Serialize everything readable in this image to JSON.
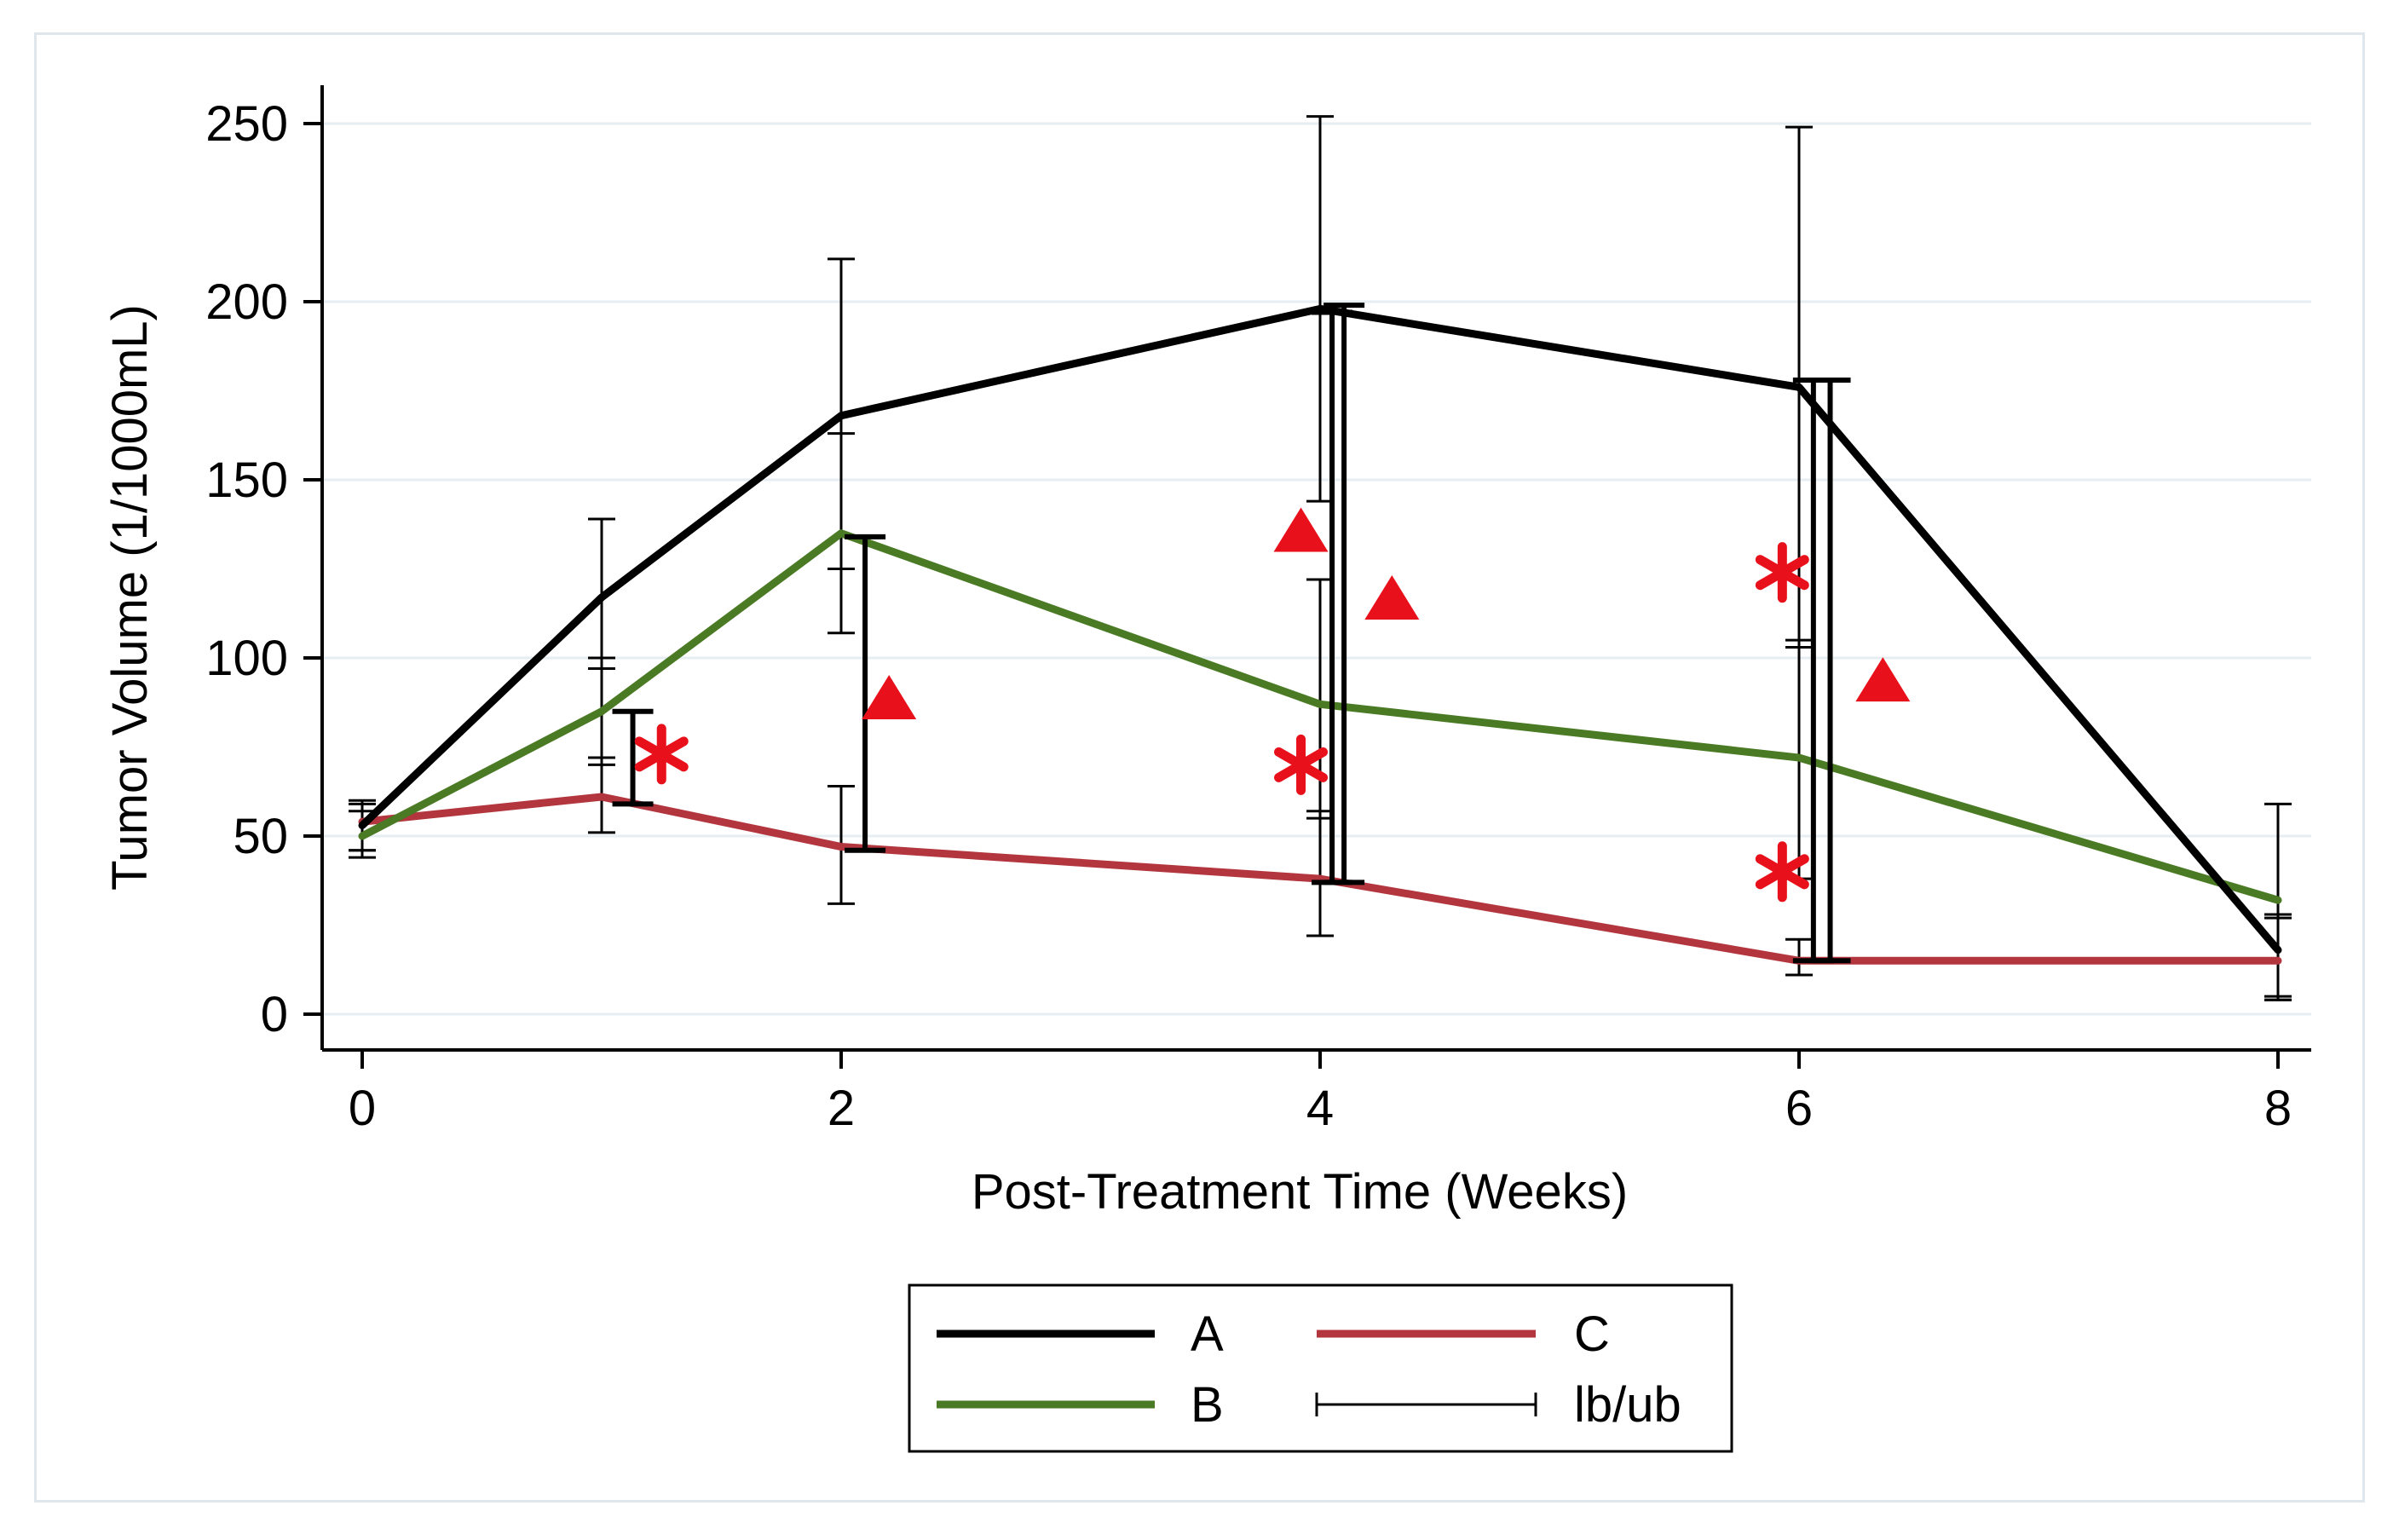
{
  "chart_data": {
    "type": "line",
    "xlabel": "Post-Treatment Time (Weeks)",
    "ylabel": "Tumor Volume (1/1000mL)",
    "xlim": [
      0,
      8
    ],
    "ylim": [
      0,
      260
    ],
    "x_ticks": [
      "0",
      "2",
      "4",
      "6",
      "8"
    ],
    "y_ticks": [
      "0",
      "50",
      "100",
      "150",
      "200",
      "250"
    ],
    "grid": "horizontal",
    "legend_position": "bottom",
    "series": [
      {
        "name": "A",
        "color": "#000000",
        "x": [
          0,
          1,
          2,
          4,
          6,
          8
        ],
        "y": [
          53,
          117,
          168,
          198,
          176,
          18
        ],
        "lb": [
          46,
          97,
          125,
          144,
          103,
          5
        ],
        "ub": [
          60,
          139,
          212,
          252,
          249,
          28
        ]
      },
      {
        "name": "B",
        "color": "#4a7a24",
        "x": [
          0,
          1,
          2,
          4,
          6,
          8
        ],
        "y": [
          50,
          85,
          135,
          87,
          72,
          32
        ],
        "lb": [
          44,
          70,
          107,
          55,
          38,
          4
        ],
        "ub": [
          57,
          100,
          163,
          122,
          105,
          59
        ]
      },
      {
        "name": "C",
        "color": "#b3363e",
        "x": [
          0,
          1,
          2,
          4,
          6,
          8
        ],
        "y": [
          54,
          61,
          47,
          38,
          15,
          15
        ],
        "lb": [
          46,
          51,
          31,
          22,
          11,
          4
        ],
        "ub": [
          59,
          72,
          64,
          57,
          21,
          27
        ]
      }
    ],
    "group_bars": [
      {
        "x": 1.13,
        "lb": 59,
        "ub": 85
      },
      {
        "x": 2.1,
        "lb": 46,
        "ub": 134
      },
      {
        "x": 4.05,
        "lb": 37,
        "ub": 197
      },
      {
        "x": 4.1,
        "lb": 37,
        "ub": 199
      },
      {
        "x": 6.06,
        "lb": 15,
        "ub": 178
      },
      {
        "x": 6.13,
        "lb": 15,
        "ub": 178
      }
    ],
    "annotations": [
      {
        "symbol": "asterisk",
        "x": 1.25,
        "y": 73
      },
      {
        "symbol": "triangle",
        "x": 2.2,
        "y": 89
      },
      {
        "symbol": "triangle",
        "x": 3.92,
        "y": 136
      },
      {
        "symbol": "triangle",
        "x": 4.3,
        "y": 117
      },
      {
        "symbol": "asterisk",
        "x": 3.92,
        "y": 70
      },
      {
        "symbol": "asterisk",
        "x": 5.93,
        "y": 124
      },
      {
        "symbol": "asterisk",
        "x": 5.93,
        "y": 40
      },
      {
        "symbol": "triangle",
        "x": 6.35,
        "y": 94
      }
    ],
    "annotation_color": "#e8111b",
    "errorbar_legend_label": "lb/ub"
  }
}
